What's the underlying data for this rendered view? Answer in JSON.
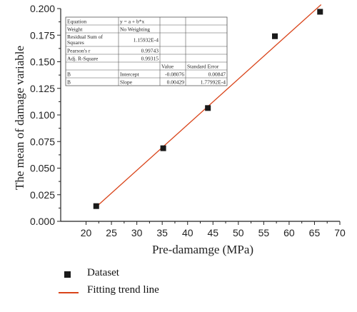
{
  "chart_data": {
    "type": "scatter",
    "title": "",
    "xlabel": "Pre-damamge (MPa)",
    "ylabel": "The mean of damage variable",
    "xlim": [
      15,
      70
    ],
    "ylim": [
      0,
      0.2
    ],
    "x_ticks": [
      "20",
      "25",
      "30",
      "35",
      "40",
      "45",
      "50",
      "55",
      "60",
      "65",
      "70"
    ],
    "y_ticks": [
      "0.000",
      "0.025",
      "0.050",
      "0.075",
      "0.100",
      "0.125",
      "0.150",
      "0.175",
      "0.200"
    ],
    "grid": false,
    "series": [
      {
        "name": "Dataset",
        "type": "scatter",
        "marker": "square",
        "color": "#1a1a1a",
        "x": [
          22,
          35.2,
          44,
          57.2,
          66.1
        ],
        "y": [
          0.0143,
          0.0687,
          0.1065,
          0.174,
          0.197
        ]
      },
      {
        "name": "Fitting trend line",
        "type": "line",
        "color": "#d9441a",
        "intercept": -0.08076,
        "slope": 0.00429,
        "x_range": [
          22,
          66.3
        ]
      }
    ],
    "legend_position": "bottom-left",
    "fit_table": {
      "rows": [
        [
          "Equation",
          "y = a + b*x",
          "",
          ""
        ],
        [
          "Weight",
          "No Weighting",
          "",
          ""
        ],
        [
          "Residual Sum of Squares",
          "1.15932E-4",
          "",
          ""
        ],
        [
          "Pearson's r",
          "0.99743",
          "",
          ""
        ],
        [
          "Adj. R-Square",
          "0.99315",
          "",
          ""
        ],
        [
          "",
          "",
          "Value",
          "Standard Error"
        ],
        [
          "B",
          "Intercept",
          "-0.08076",
          "0.00847"
        ],
        [
          "B",
          "Slope",
          "0.00429",
          "1.77992E-4"
        ]
      ]
    }
  }
}
